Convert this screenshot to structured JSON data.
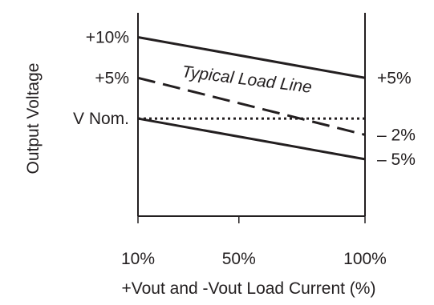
{
  "chart_data": {
    "type": "line",
    "title": "",
    "xlabel": "+Vout and -Vout Load Current (%)",
    "ylabel": "Output Voltage",
    "x": [
      10,
      100
    ],
    "x_ticks": [
      "10%",
      "50%",
      "100%"
    ],
    "x_tick_values": [
      10,
      50,
      100
    ],
    "xlim": [
      10,
      100
    ],
    "ylim": [
      -12,
      13
    ],
    "y_ticks_left": [
      "+10%",
      "+5%",
      "V Nom."
    ],
    "y_tick_values_left": [
      10,
      5,
      0
    ],
    "y_ticks_right": [
      "+5%",
      "– 2%",
      "– 5%"
    ],
    "y_tick_values_right": [
      5,
      -2,
      -5
    ],
    "series": [
      {
        "name": "",
        "style": "solid",
        "values": [
          10,
          5
        ]
      },
      {
        "name": "Typical Load Line",
        "style": "dashed",
        "values": [
          5,
          -2
        ]
      },
      {
        "name": "",
        "style": "dotted",
        "values": [
          0,
          0
        ]
      },
      {
        "name": "",
        "style": "solid",
        "values": [
          0,
          -5
        ]
      }
    ],
    "annotations": [
      {
        "text": "Typical Load Line"
      }
    ],
    "grid": false,
    "colors": {
      "line": "#231f20",
      "text": "#231f20",
      "background": "#ffffff"
    }
  }
}
